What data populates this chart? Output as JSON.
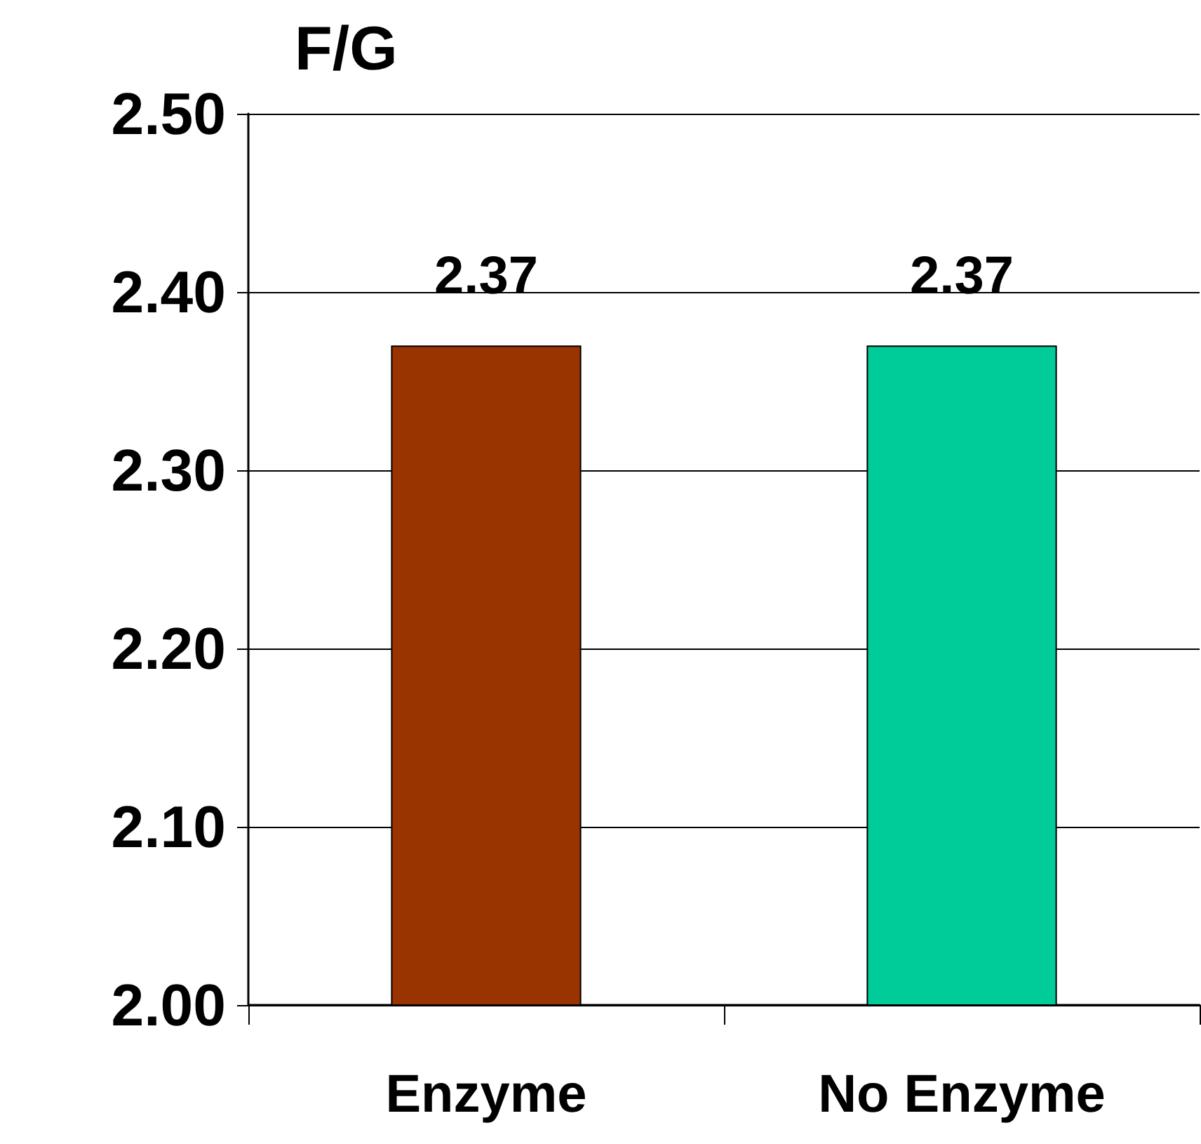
{
  "chart_data": {
    "type": "bar",
    "title": "F/G",
    "categories": [
      "Enzyme",
      "No Enzyme"
    ],
    "values": [
      2.37,
      2.37
    ],
    "colors": [
      "#993300",
      "#00cc99"
    ],
    "ylim": [
      2.0,
      2.5
    ],
    "yticks": [
      {
        "value": 2.0,
        "label": "2.00"
      },
      {
        "value": 2.1,
        "label": "2.10"
      },
      {
        "value": 2.2,
        "label": "2.20"
      },
      {
        "value": 2.3,
        "label": "2.30"
      },
      {
        "value": 2.4,
        "label": "2.40"
      },
      {
        "value": 2.5,
        "label": "2.50"
      }
    ],
    "grid": "y",
    "data_labels": true
  }
}
